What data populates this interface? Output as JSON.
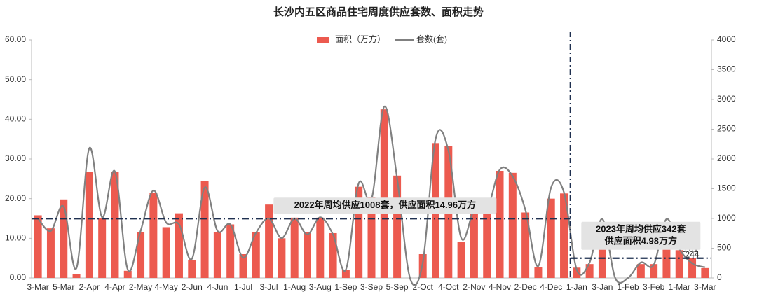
{
  "chart_data": {
    "type": "bar_line",
    "title": "长沙内五区商品住宅周度供应套数、面积走势",
    "categories": [
      "3-Mar",
      null,
      "5-Mar",
      null,
      "2-Apr",
      null,
      "4-Apr",
      null,
      "2-May",
      null,
      "4-May",
      null,
      "2-Jun",
      null,
      "4-Jun",
      null,
      "1-Jul",
      null,
      "3-Jul",
      null,
      "1-Aug",
      null,
      "3-Aug",
      null,
      "1-Sep",
      null,
      "3-Sep",
      null,
      "5-Sep",
      null,
      "2-Oct",
      null,
      "4-Oct",
      null,
      "2-Nov",
      null,
      "4-Nov",
      null,
      "2-Dec",
      null,
      "4-Dec",
      null,
      "1-Jan",
      null,
      "3-Jan",
      null,
      "1-Feb",
      null,
      "3-Feb",
      null,
      "1-Mar",
      null,
      "3-Mar"
    ],
    "series": [
      {
        "name": "面积（万方）",
        "type": "bar",
        "axis": "y",
        "color": "#ec5a4f",
        "values": [
          15.8,
          12.5,
          19.8,
          1.0,
          26.8,
          15.0,
          26.8,
          1.8,
          11.5,
          21.5,
          12.8,
          16.3,
          4.5,
          24.5,
          11.5,
          13.5,
          6.0,
          11.5,
          18.5,
          10.0,
          15.2,
          11.5,
          15.2,
          11.3,
          2.0,
          23.0,
          20.3,
          42.5,
          25.8,
          0,
          6.0,
          34.0,
          33.3,
          9.0,
          17.0,
          17.3,
          27.0,
          26.5,
          16.5,
          2.7,
          20.0,
          21.3,
          2.6,
          3.5,
          9.7,
          0,
          0,
          3.5,
          3.5,
          8.0,
          7.0,
          5.01,
          2.5
        ],
        "value_labels": [
          null,
          null,
          null,
          null,
          null,
          null,
          null,
          null,
          null,
          null,
          null,
          null,
          null,
          null,
          null,
          null,
          null,
          null,
          null,
          null,
          null,
          null,
          null,
          null,
          null,
          null,
          null,
          null,
          null,
          null,
          null,
          null,
          null,
          null,
          null,
          null,
          null,
          null,
          null,
          null,
          null,
          null,
          null,
          null,
          null,
          null,
          null,
          null,
          null,
          null,
          null,
          "5.01",
          null
        ]
      },
      {
        "name": "套数(套)",
        "type": "line",
        "axis": "y2",
        "color": "#808080",
        "values": [
          1000,
          790,
          1200,
          165,
          2180,
          1020,
          1790,
          140,
          790,
          1470,
          930,
          900,
          320,
          1520,
          790,
          900,
          340,
          760,
          1000,
          670,
          1000,
          730,
          1020,
          730,
          140,
          1590,
          1320,
          2880,
          1670,
          0,
          260,
          2340,
          2140,
          670,
          1140,
          1140,
          1820,
          1710,
          1140,
          200,
          1520,
          1440,
          140,
          260,
          990,
          0,
          0,
          260,
          220,
          990,
          490,
          244,
          180
        ],
        "value_labels": [
          null,
          null,
          null,
          null,
          null,
          null,
          null,
          null,
          null,
          null,
          null,
          null,
          null,
          null,
          null,
          null,
          null,
          null,
          null,
          null,
          null,
          null,
          null,
          null,
          null,
          null,
          null,
          null,
          null,
          null,
          null,
          null,
          null,
          null,
          null,
          null,
          null,
          null,
          null,
          null,
          null,
          null,
          null,
          null,
          null,
          null,
          null,
          null,
          null,
          null,
          null,
          "244",
          null
        ]
      }
    ],
    "ylim": [
      0,
      60
    ],
    "yticks": [
      {
        "value": 0,
        "label": "0.00"
      },
      {
        "value": 10,
        "label": "10.00"
      },
      {
        "value": 20,
        "label": "20.00"
      },
      {
        "value": 30,
        "label": "30.00"
      },
      {
        "value": 40,
        "label": "40.00"
      },
      {
        "value": 50,
        "label": "50.00"
      },
      {
        "value": 60,
        "label": "60.00"
      }
    ],
    "y2lim": [
      0,
      4000
    ],
    "y2ticks": [
      0,
      500,
      1000,
      1500,
      2000,
      2500,
      3000,
      3500,
      4000
    ],
    "divider_before": "1-Jan",
    "reference_lines": [
      {
        "lines": [
          "2022年周均供应1008套，供应面积14.96万方"
        ],
        "value": 14.96,
        "side": "before"
      },
      {
        "lines": [
          "2023年周均供应342套",
          "供应面积4.98万方"
        ],
        "value": 4.98,
        "side": "after"
      }
    ],
    "ref_color": "#1f3050",
    "legend": "top"
  }
}
